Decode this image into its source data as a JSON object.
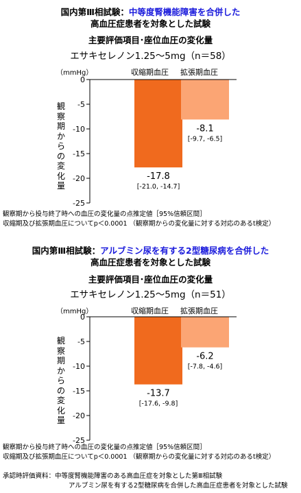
{
  "colors": {
    "systolic": "#f06a1e",
    "diastolic": "#fba574",
    "highlight": "#1a1adc"
  },
  "chart_data": [
    {
      "type": "bar",
      "title_prefix": "国内第Ⅲ相試験：",
      "title_highlight": "中等度腎機能障害を合併した",
      "title_line2": "高血圧症患者を対象とした試験",
      "subtitle": "主要評価項目･座位血圧の変化量",
      "drug_label": "エサキセレノン1.25～5mg（n＝58）",
      "unit": "（mmHg）",
      "ylabel": "観察期からの変化量",
      "ylim": [
        -25,
        0
      ],
      "yticks": [
        "0",
        "-5",
        "-10",
        "-15",
        "-20",
        "-25"
      ],
      "categories": [
        "収縮期血圧",
        "拡張期血圧"
      ],
      "values": [
        -17.8,
        -8.1
      ],
      "value_labels": [
        "-17.8",
        "-8.1"
      ],
      "ci_labels": [
        "[-21.0, -14.7]",
        "[-9.7, -6.5]"
      ],
      "notes": [
        "観察期から投与終了時への血圧の変化量の点推定値［95%信頼区間］",
        "収縮期及び拡張期血圧についてp＜0.0001 （観察期からの変化量に対する対応のあるt検定）"
      ]
    },
    {
      "type": "bar",
      "title_prefix": "国内第Ⅲ相試験：",
      "title_highlight": "アルブミン尿を有する2型糖尿病を合併した",
      "title_line2": "高血圧症患者を対象とした試験",
      "subtitle": "主要評価項目･座位血圧の変化量",
      "drug_label": "エサキセレノン1.25～5mg（n＝51）",
      "unit": "（mmHg）",
      "ylabel": "観察期からの変化量",
      "ylim": [
        -25,
        0
      ],
      "yticks": [
        "0",
        "-5",
        "-10",
        "-15",
        "-20",
        "-25"
      ],
      "categories": [
        "収縮期血圧",
        "拡張期血圧"
      ],
      "values": [
        -13.7,
        -6.2
      ],
      "value_labels": [
        "-13.7",
        "-6.2"
      ],
      "ci_labels": [
        "[-17.6, -9.8]",
        "[-7.8, -4.6]"
      ],
      "notes": [
        "観察期から投与終了時への血圧の変化量の点推定値［95%信頼区間］",
        "収縮期及び拡張期血圧についてp＜0.0001 （観察期からの変化量に対する対応のあるt検定）"
      ]
    }
  ],
  "source": {
    "label": "承認時評価資料：",
    "line1": "中等度腎機能障害のある高血圧症を対象とした第Ⅲ相試験",
    "line2": "アルブミン尿を有する2型糖尿病を合併した高血圧症患者を対象とした試験"
  }
}
